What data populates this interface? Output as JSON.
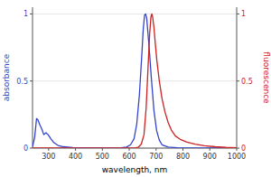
{
  "chart_data": {
    "type": "line",
    "xlabel": "wavelength, nm",
    "ylabel": "absorbance",
    "y2label": "fluorescence",
    "xlim": [
      240,
      1000
    ],
    "ylim": [
      0,
      1.05
    ],
    "y2lim": [
      0,
      1.05
    ],
    "xticks": [
      300,
      400,
      500,
      600,
      700,
      800,
      900,
      1000
    ],
    "yticks": [
      0,
      0.5,
      1
    ],
    "y2ticks": [
      0,
      0.5,
      1
    ],
    "series": [
      {
        "color": "#3344cc",
        "x": [
          240,
          248,
          255,
          260,
          268,
          275,
          282,
          290,
          298,
          308,
          320,
          335,
          355,
          390,
          450,
          530,
          570,
          590,
          605,
          618,
          628,
          638,
          647,
          652,
          657,
          661,
          665,
          670,
          676,
          682,
          692,
          702,
          712,
          722,
          745,
          780,
          850,
          950,
          1000
        ],
        "values": [
          0.01,
          0.08,
          0.22,
          0.21,
          0.17,
          0.14,
          0.1,
          0.115,
          0.1,
          0.07,
          0.04,
          0.02,
          0.01,
          0.004,
          0.002,
          0.001,
          0.002,
          0.008,
          0.025,
          0.07,
          0.18,
          0.4,
          0.7,
          0.88,
          0.99,
          1.0,
          0.97,
          0.85,
          0.7,
          0.53,
          0.28,
          0.13,
          0.06,
          0.025,
          0.008,
          0.003,
          0.001,
          0.001,
          0.001
        ]
      },
      {
        "color": "#cc2222",
        "axis": "y2",
        "x": [
          240,
          610,
          625,
          635,
          645,
          655,
          663,
          670,
          676,
          681,
          684,
          687,
          692,
          697,
          703,
          712,
          722,
          733,
          745,
          758,
          772,
          790,
          815,
          845,
          880,
          920,
          960,
          1000
        ],
        "values": [
          0.0,
          0.0,
          0.002,
          0.008,
          0.03,
          0.1,
          0.3,
          0.6,
          0.85,
          0.98,
          1.0,
          0.98,
          0.9,
          0.78,
          0.65,
          0.5,
          0.37,
          0.27,
          0.19,
          0.13,
          0.09,
          0.065,
          0.045,
          0.03,
          0.018,
          0.01,
          0.005,
          0.002
        ]
      }
    ]
  }
}
